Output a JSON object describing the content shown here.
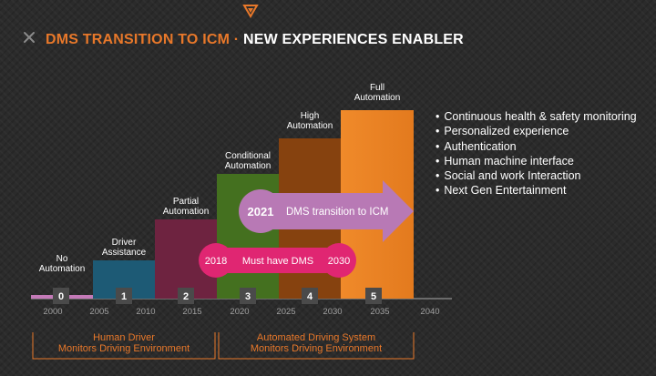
{
  "header": {
    "title_part1": "DMS TRANSITION TO ICM",
    "title_sep": " · ",
    "title_part2": "NEW EXPERIENCES ENABLER"
  },
  "levels": [
    {
      "number": "0",
      "label": [
        "No",
        "Automation"
      ],
      "color": "#c47ab8"
    },
    {
      "number": "1",
      "label": [
        "Driver",
        "Assistance"
      ],
      "color": "#1d5a75"
    },
    {
      "number": "2",
      "label": [
        "Partial",
        "Automation"
      ],
      "color": "#6e2340"
    },
    {
      "number": "3",
      "label": [
        "Conditional",
        "Automation"
      ],
      "color": "#44701f"
    },
    {
      "number": "4",
      "label": [
        "High",
        "Automation"
      ],
      "color": "#86420f"
    },
    {
      "number": "5",
      "label": [
        "Full",
        "Automation"
      ],
      "color": "#ed8323"
    }
  ],
  "axis_years": [
    "2000",
    "2005",
    "2010",
    "2015",
    "2020",
    "2025",
    "2030",
    "2035",
    "2040"
  ],
  "transition_arrow": {
    "year": "2021",
    "text": "DMS transition to ICM",
    "color": "#b879b5"
  },
  "must_have": {
    "start": "2018",
    "text": "Must have DMS",
    "end": "2030",
    "color": "#e02672"
  },
  "bullets": [
    "Continuous health & safety monitoring",
    "Personalized experience",
    "Authentication",
    "Human machine interface",
    "Social and work Interaction",
    "Next Gen Entertainment"
  ],
  "groups": {
    "human": [
      "Human Driver",
      "Monitors Driving Environment"
    ],
    "automated": [
      "Automated Driving System",
      "Monitors Driving Environment"
    ]
  },
  "colors": {
    "accent": "#e8782a",
    "badge": "#4a4a4a"
  }
}
